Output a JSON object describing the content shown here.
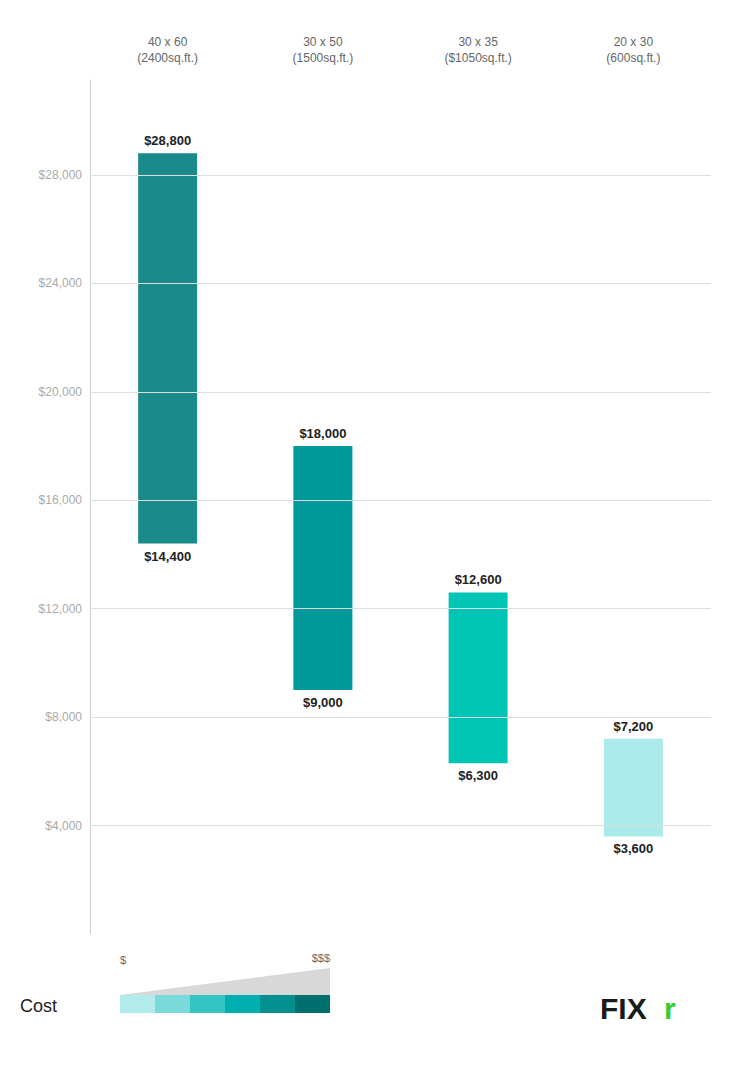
{
  "chart_data": {
    "type": "bar",
    "categories": [
      "40 x 60\n(2400sq.ft.)",
      "30 x 50\n(1500sq.ft.)",
      "30 x 35\n($1050sq.ft.)",
      "20 x 30\n(600sq.ft.)"
    ],
    "values": [
      [
        14400,
        28800
      ],
      [
        9000,
        18000
      ],
      [
        6300,
        12600
      ],
      [
        3600,
        7200
      ]
    ],
    "value_labels": [
      [
        "$14,400",
        "$28,800"
      ],
      [
        "$9,000",
        "$18,000"
      ],
      [
        "$6,300",
        "$12,600"
      ],
      [
        "$3,600",
        "$7,200"
      ]
    ],
    "colors": [
      "#1a8a8a",
      "#009999",
      "#00c4b4",
      "#aaeaea"
    ],
    "ylim": [
      0,
      31500
    ],
    "yticks": [
      {
        "value": 4000,
        "label": "$4,000"
      },
      {
        "value": 8000,
        "label": "$8,000"
      },
      {
        "value": 12000,
        "label": "$12,000"
      },
      {
        "value": 16000,
        "label": "$16,000"
      },
      {
        "value": 20000,
        "label": "$20,000"
      },
      {
        "value": 24000,
        "label": "$24,000"
      },
      {
        "value": 28000,
        "label": "$28,000"
      }
    ],
    "grid": true,
    "data_labels": true,
    "annotations": [
      "Cost",
      "$",
      "$$$",
      "FIX",
      "r"
    ]
  }
}
